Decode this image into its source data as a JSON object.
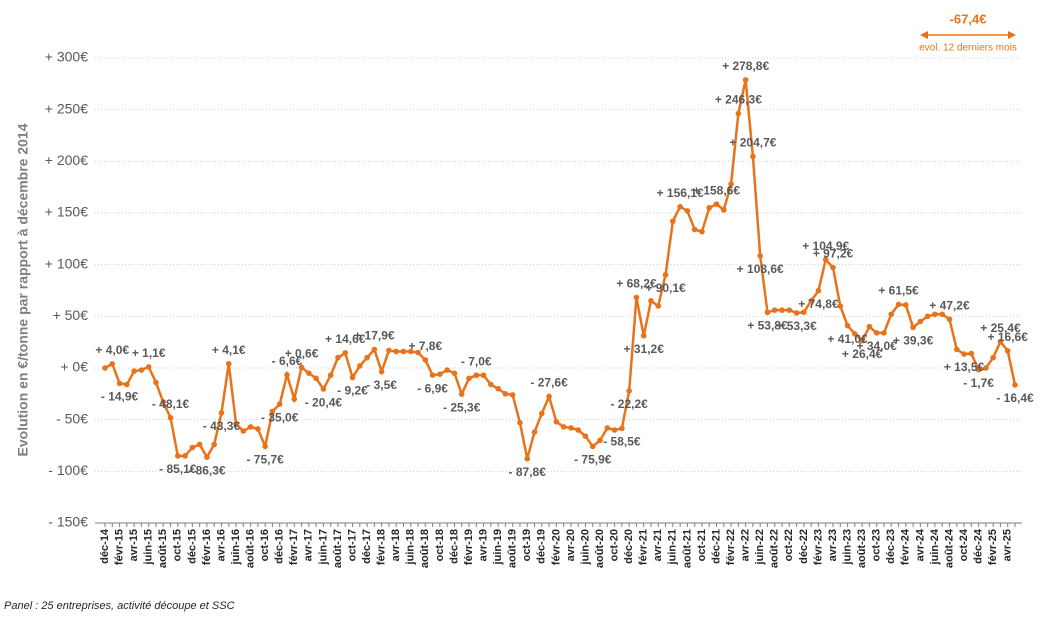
{
  "chart_data": {
    "type": "line",
    "y_label": "Evolution en €/tonne par rapport à décembre 2014",
    "annotation": {
      "value": "-67,4€",
      "text": "evol. 12 derniers mois"
    },
    "footnote": "Panel : 25 entreprises, activité découpe et SSC",
    "categories": [
      "déc-14",
      null,
      "févr-15",
      null,
      "avr-15",
      null,
      "juin-15",
      null,
      "août-15",
      null,
      "oct-15",
      null,
      "déc-15",
      null,
      "févr-16",
      null,
      "avr-16",
      null,
      "juin-16",
      null,
      "août-16",
      null,
      "oct-16",
      null,
      "déc-16",
      null,
      "févr-17",
      null,
      "avr-17",
      null,
      "juin-17",
      null,
      "août-17",
      null,
      "oct-17",
      null,
      "déc-17",
      null,
      "févr-18",
      null,
      "avr-18",
      null,
      "juin-18",
      null,
      "août-18",
      null,
      "oct-18",
      null,
      "déc-18",
      null,
      "févr-19",
      null,
      "avr-19",
      null,
      "juin-19",
      null,
      "août-19",
      null,
      "oct-19",
      null,
      "déc-19",
      null,
      "févr-20",
      null,
      "avr-20",
      null,
      "juin-20",
      null,
      "août-20",
      null,
      "oct-20",
      null,
      "déc-20",
      null,
      "févr-21",
      null,
      "avr-21",
      null,
      "juin-21",
      null,
      "août-21",
      null,
      "oct-21",
      null,
      "déc-21",
      null,
      "févr-22",
      null,
      "avr-22",
      null,
      "juin-22",
      null,
      "août-22",
      null,
      "oct-22",
      null,
      "déc-22",
      null,
      "févr-23",
      null,
      "avr-23",
      null,
      "juin-23",
      null,
      "août-23",
      null,
      "oct-23",
      null,
      "déc-23",
      null,
      "févr-24",
      null,
      "avr-24",
      null,
      "juin-24",
      null,
      "août-24",
      null,
      "oct-24",
      null,
      "déc-24",
      null,
      "févr-25",
      null,
      "avr-25",
      null
    ],
    "series": [
      {
        "name": "Evolution",
        "color": "#e8731a",
        "values": [
          0,
          4.0,
          -14.9,
          -16,
          -3,
          -2,
          1.1,
          -14,
          -33,
          -48.1,
          -85.1,
          -85,
          -77,
          -74,
          -86.3,
          -74,
          -43.3,
          4.1,
          -54,
          -61,
          -57,
          -59,
          -75.7,
          -42,
          -35.0,
          -6.6,
          -30,
          0.6,
          -5,
          -10,
          -20.4,
          -7,
          10,
          14.6,
          -9.2,
          2,
          10,
          17.9,
          -3.5,
          17,
          16,
          16,
          16,
          15,
          7.8,
          -6.9,
          -6,
          -2,
          -5,
          -25.3,
          -10,
          -7.0,
          -7,
          -16,
          -20,
          -25,
          -26,
          -53,
          -87.8,
          -62,
          -44,
          -27.6,
          -52,
          -57,
          -58,
          -60,
          -66,
          -75.9,
          -70,
          -58,
          -60,
          -58.5,
          -22.2,
          68.2,
          31.2,
          65,
          60,
          90.1,
          142,
          156.1,
          152,
          134,
          132,
          155,
          158.6,
          153,
          178,
          246.3,
          278.8,
          204.7,
          108.6,
          53.8,
          56,
          56,
          56,
          53.3,
          54,
          65,
          74.8,
          104.9,
          97.2,
          60,
          41.0,
          33,
          26.4,
          40,
          34.0,
          34,
          52,
          61.5,
          61,
          39.3,
          45,
          50,
          52,
          52,
          47.2,
          18,
          13.5,
          14,
          -1.7,
          0,
          10,
          25.4,
          16.6,
          -16.4
        ],
        "value_labels": [
          null,
          "+ 4,0€",
          "- 14,9€",
          null,
          null,
          null,
          "+ 1,1€",
          null,
          null,
          "- 48,1€",
          "- 85,1€",
          null,
          null,
          null,
          "- 86,3€",
          null,
          "- 43,3€",
          "+ 4,1€",
          null,
          null,
          null,
          null,
          "- 75,7€",
          null,
          "- 35,0€",
          "- 6,6€",
          null,
          "+ 0,6€",
          null,
          null,
          "- 20,4€",
          null,
          null,
          "+ 14,6€",
          "- 9,2€",
          null,
          null,
          "+ 17,9€",
          "- 3,5€",
          null,
          null,
          null,
          null,
          null,
          "+ 7,8€",
          "- 6,9€",
          null,
          null,
          null,
          "- 25,3€",
          null,
          "- 7,0€",
          null,
          null,
          null,
          null,
          null,
          null,
          "- 87,8€",
          null,
          null,
          "- 27,6€",
          null,
          null,
          null,
          null,
          null,
          "- 75,9€",
          null,
          null,
          null,
          "- 58,5€",
          "- 22,2€",
          "+ 68,2€",
          "+ 31,2€",
          null,
          null,
          "+ 90,1€",
          null,
          "+ 156,1€",
          null,
          null,
          null,
          null,
          "+ 158,6€",
          null,
          null,
          "+ 246,3€",
          "+ 278,8€",
          "+ 204,7€",
          "+ 108,6€",
          "+ 53,8€",
          null,
          null,
          null,
          "+ 53,3€",
          null,
          null,
          "+ 74,8€",
          "+ 104,9€",
          "+ 97,2€",
          null,
          "+ 41,0€",
          null,
          "+ 26,4€",
          null,
          "+ 34,0€",
          null,
          null,
          "+ 61,5€",
          null,
          "+ 39,3€",
          null,
          null,
          null,
          null,
          "+ 47,2€",
          null,
          "+ 13,5€",
          null,
          "- 1,7€",
          null,
          null,
          "+ 25,4€",
          "+ 16,6€",
          "- 16,4€"
        ]
      }
    ],
    "ylim": [
      -150,
      300
    ],
    "yticks": [
      {
        "value": -150,
        "label": "- 150€"
      },
      {
        "value": -100,
        "label": "- 100€"
      },
      {
        "value": -50,
        "label": "- 50€"
      },
      {
        "value": 0,
        "label": "+ 0€"
      },
      {
        "value": 50,
        "label": "+ 50€"
      },
      {
        "value": 100,
        "label": "+ 100€"
      },
      {
        "value": 150,
        "label": "+ 150€"
      },
      {
        "value": 200,
        "label": "+ 200€"
      },
      {
        "value": 250,
        "label": "+ 250€"
      },
      {
        "value": 300,
        "label": "+ 300€"
      }
    ],
    "grid": true
  }
}
